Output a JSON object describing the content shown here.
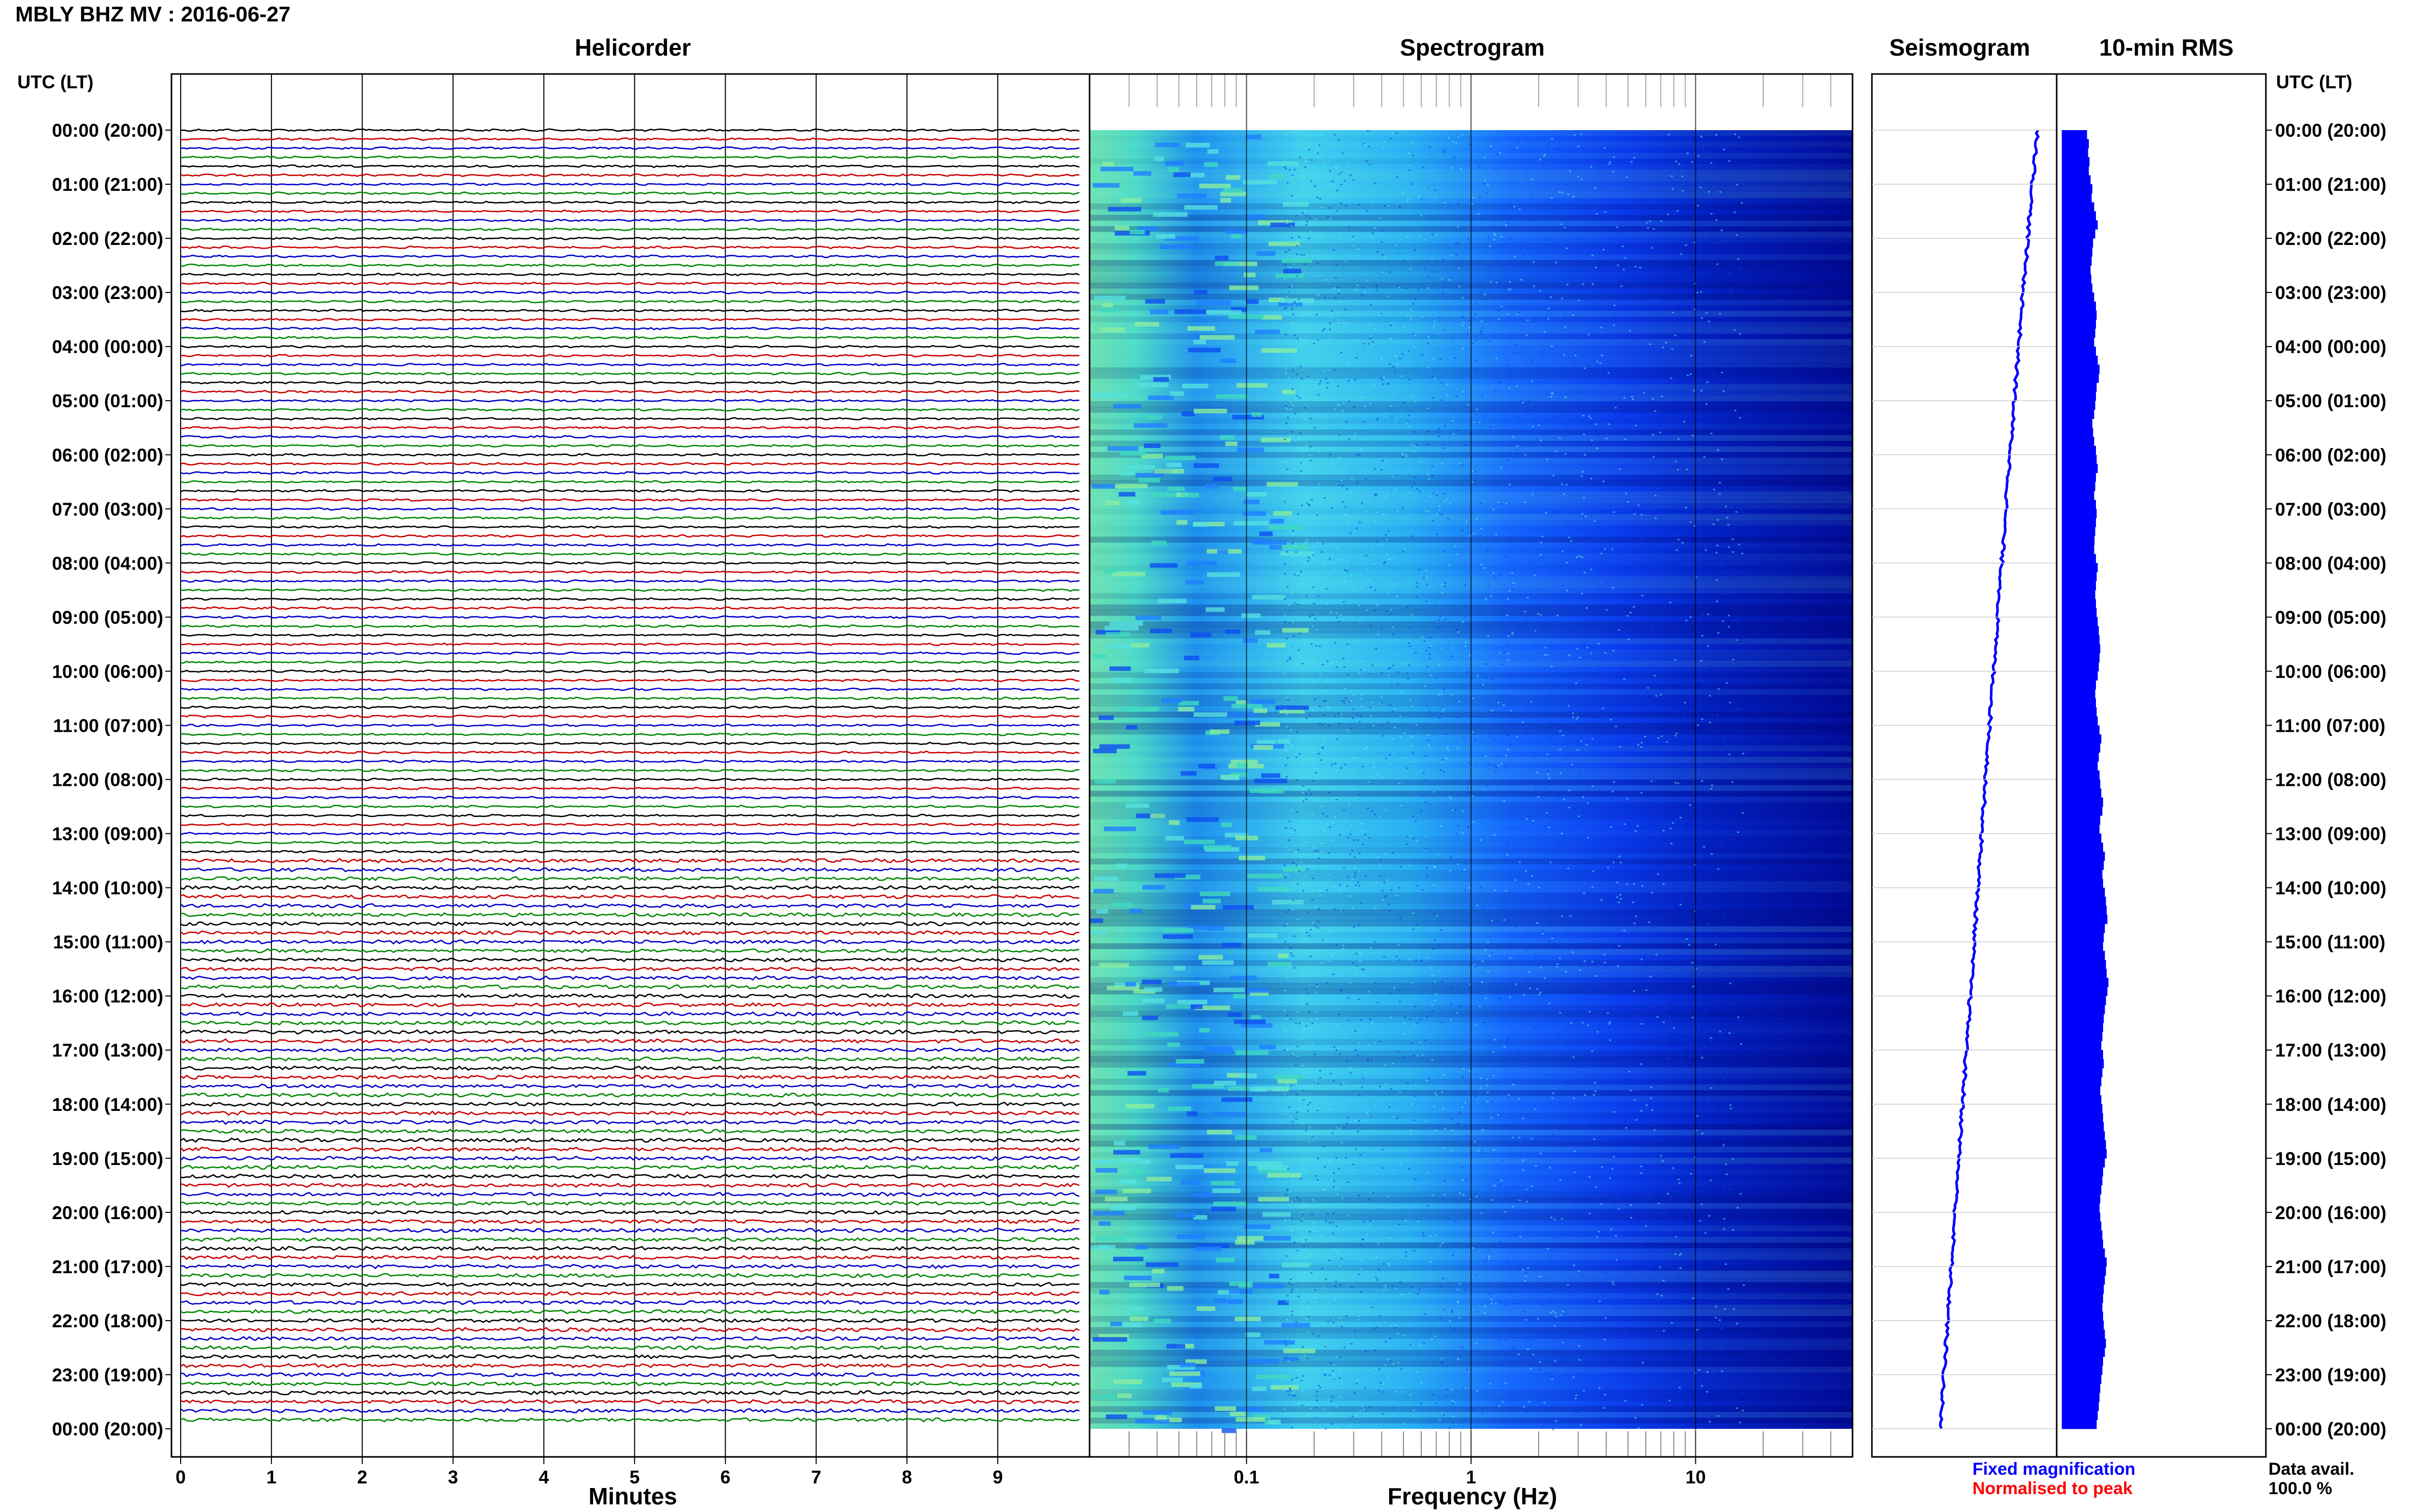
{
  "header": {
    "title": "MBLY BHZ MV : 2016-06-27",
    "utc_label_left": "UTC (LT)",
    "utc_label_right": "UTC (LT)"
  },
  "panels": {
    "helicorder": "Helicorder",
    "spectrogram": "Spectrogram",
    "seismogram": "Seismogram",
    "rms": "10-min RMS"
  },
  "axes": {
    "helicorder_xlabel": "Minutes",
    "spectrogram_xlabel": "Frequency (Hz)"
  },
  "footer": {
    "fixed_mag": "Fixed magnification",
    "normalised": "Normalised to peak",
    "data_avail_label": "Data avail.",
    "data_avail_value": "100.0 %"
  },
  "colors": {
    "trace_black": "#000000",
    "trace_red": "#cc0000",
    "trace_blue": "#0000cc",
    "trace_green": "#008800",
    "spectro_low": "#00007a",
    "spectro_high": "#bfff40",
    "rms_bar": "#0000ff",
    "fixed_mag_text": "#0000ff",
    "normalised_text": "#ff0000"
  },
  "chart_data": [
    {
      "type": "line",
      "name": "helicorder",
      "xlabel": "Minutes",
      "x_ticks": [
        0,
        1,
        2,
        3,
        4,
        5,
        6,
        7,
        8,
        9
      ],
      "xlim": [
        0,
        10
      ],
      "rows_per_hour": 6,
      "trace_color_cycle": [
        "black",
        "red",
        "blue",
        "green"
      ],
      "y_ticks_utc": [
        "00:00",
        "01:00",
        "02:00",
        "03:00",
        "04:00",
        "05:00",
        "06:00",
        "07:00",
        "08:00",
        "09:00",
        "10:00",
        "11:00",
        "12:00",
        "13:00",
        "14:00",
        "15:00",
        "16:00",
        "17:00",
        "18:00",
        "19:00",
        "20:00",
        "21:00",
        "22:00",
        "23:00",
        "00:00"
      ],
      "y_ticks_lt": [
        "(20:00)",
        "(21:00)",
        "(22:00)",
        "(23:00)",
        "(00:00)",
        "(01:00)",
        "(02:00)",
        "(03:00)",
        "(04:00)",
        "(05:00)",
        "(06:00)",
        "(07:00)",
        "(08:00)",
        "(09:00)",
        "(10:00)",
        "(11:00)",
        "(12:00)",
        "(13:00)",
        "(14:00)",
        "(15:00)",
        "(16:00)",
        "(17:00)",
        "(18:00)",
        "(19:00)",
        "(20:00)"
      ]
    },
    {
      "type": "heatmap",
      "name": "spectrogram",
      "xlabel": "Frequency (Hz)",
      "x_scale": "log",
      "x_ticks": [
        0.1,
        1,
        10
      ],
      "x_tick_labels": [
        "0.1",
        "1",
        "10"
      ],
      "xlim": [
        0.02,
        50
      ]
    },
    {
      "type": "line",
      "name": "seismogram",
      "drift_start": 0.9,
      "drift_end": 0.37
    },
    {
      "type": "bar",
      "name": "10-min RMS",
      "relative_values": [
        0.35,
        0.4,
        0.38,
        0.42,
        0.4,
        0.45,
        0.5,
        0.48,
        0.55,
        0.6,
        0.65,
        0.58,
        0.52,
        0.5,
        0.48,
        0.45,
        0.47,
        0.5,
        0.55,
        0.6,
        0.62,
        0.6,
        0.58,
        0.55,
        0.6,
        0.65,
        0.7,
        0.68,
        0.62,
        0.6,
        0.58,
        0.55,
        0.5,
        0.52,
        0.55,
        0.6,
        0.62,
        0.65,
        0.6,
        0.58,
        0.55,
        0.6,
        0.62,
        0.6,
        0.58,
        0.56,
        0.55,
        0.6,
        0.65,
        0.62,
        0.6,
        0.58,
        0.6,
        0.62,
        0.65,
        0.68,
        0.7,
        0.72,
        0.7,
        0.68,
        0.65,
        0.6,
        0.58,
        0.6,
        0.62,
        0.65,
        0.7,
        0.75,
        0.72,
        0.68,
        0.65,
        0.7,
        0.72,
        0.75,
        0.8,
        0.78,
        0.72,
        0.7,
        0.75,
        0.8,
        0.85,
        0.82,
        0.78,
        0.8,
        0.85,
        0.88,
        0.9,
        0.92,
        0.85,
        0.82,
        0.8,
        0.85,
        0.88,
        0.9,
        0.95,
        0.92,
        0.88,
        0.85,
        0.82,
        0.8,
        0.78,
        0.75,
        0.8,
        0.82,
        0.78,
        0.75,
        0.72,
        0.75,
        0.78,
        0.8,
        0.82,
        0.85,
        0.88,
        0.9,
        0.85,
        0.8,
        0.78,
        0.75,
        0.72,
        0.7,
        0.72,
        0.75,
        0.78,
        0.8,
        0.85,
        0.9,
        0.88,
        0.85,
        0.82,
        0.8,
        0.78,
        0.8,
        0.82,
        0.85,
        0.88,
        0.85,
        0.8,
        0.78,
        0.75,
        0.72,
        0.7,
        0.68,
        0.65,
        0.62
      ]
    }
  ]
}
